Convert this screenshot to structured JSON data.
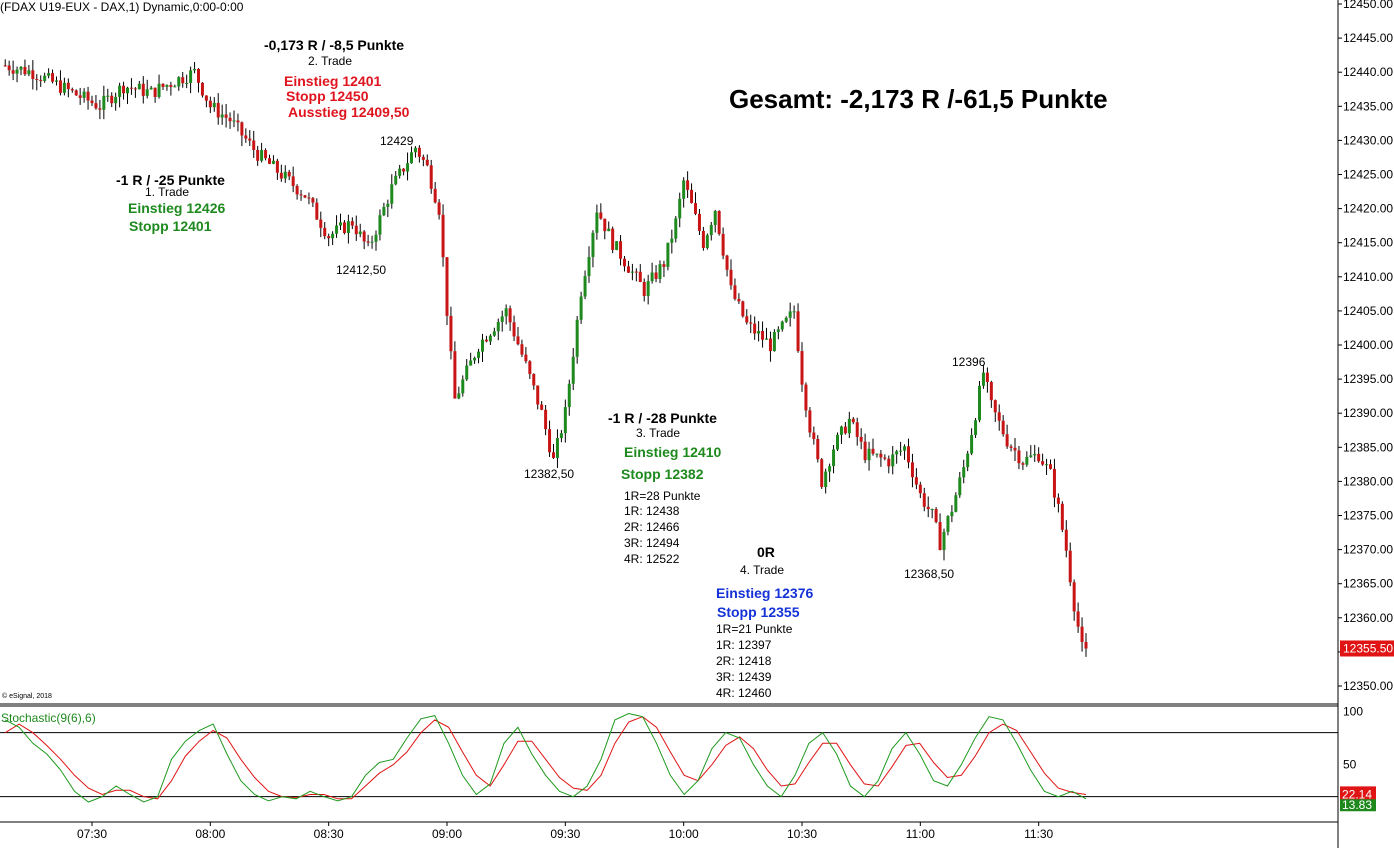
{
  "header": {
    "symbol_text": "(FDAX U19-EUX - DAX,1) Dynamic,0:00-0:00",
    "copyright": "© eSignal, 2018"
  },
  "summary": "Gesamt: -2,173 R /-61,5 Punkte",
  "annotations": {
    "trade1": {
      "result": "-1 R / -25 Punkte",
      "name": "1. Trade",
      "entry": "Einstieg 12426",
      "stop": "Stopp 12401"
    },
    "trade2": {
      "result": "-0,173 R / -8,5 Punkte",
      "name": "2. Trade",
      "entry": "Einstieg 12401",
      "stop": "Stopp 12450",
      "exit": "Ausstieg 12409,50"
    },
    "trade3": {
      "result": "-1 R / -28 Punkte",
      "name": "3. Trade",
      "entry": "Einstieg 12410",
      "stop": "Stopp 12382",
      "r_def": "1R=28 Punkte",
      "r1": "1R: 12438",
      "r2": "2R: 12466",
      "r3": "3R: 12494",
      "r4": "4R: 12522"
    },
    "trade4": {
      "result": "0R",
      "name": "4. Trade",
      "entry": "Einstieg 12376",
      "stop": "Stopp 12355",
      "r_def": "1R=21 Punkte",
      "r1": "1R: 12397",
      "r2": "2R: 12418",
      "r3": "3R: 12439",
      "r4": "4R: 12460"
    },
    "levels": {
      "l12429": "12429",
      "l12412": "12412,50",
      "l12382": "12382,50",
      "l12396": "12396",
      "l12368": "12368,50"
    }
  },
  "colors": {
    "up": "#1e8a1e",
    "down": "#c81414",
    "stoch_k": "#1e9a1e",
    "stoch_d": "#e01414",
    "last_price_bg": "#e01414"
  },
  "chart_data": [
    {
      "type": "candlestick",
      "title": "(FDAX U19-EUX - DAX,1) Dynamic,0:00-0:00",
      "timeframe": "1 minute",
      "y_ticks": [
        12350,
        12355,
        12360,
        12365,
        12370,
        12375,
        12380,
        12385,
        12390,
        12395,
        12400,
        12405,
        12410,
        12415,
        12420,
        12425,
        12430,
        12435,
        12440,
        12445,
        12450
      ],
      "y_tick_labels": [
        "12350.00",
        "12355.00",
        "12360.00",
        "12365.00",
        "12370.00",
        "12375.00",
        "12380.00",
        "12385.00",
        "12390.00",
        "12395.00",
        "12400.00",
        "12405.00",
        "12410.00",
        "12415.00",
        "12420.00",
        "12425.00",
        "12430.00",
        "12435.00",
        "12440.00",
        "12445.00",
        "12450.00"
      ],
      "ylim": [
        12347.5,
        12450.5
      ],
      "x_ticks": [
        "07:30",
        "08:00",
        "08:30",
        "09:00",
        "09:30",
        "10:00",
        "10:30",
        "11:00",
        "11:30"
      ],
      "x_range": [
        "07:08",
        "11:42"
      ],
      "last_price": "12355.50",
      "close_path": [
        {
          "t": "07:08",
          "v": 12441
        },
        {
          "t": "07:15",
          "v": 12440
        },
        {
          "t": "07:25",
          "v": 12437
        },
        {
          "t": "07:32",
          "v": 12435
        },
        {
          "t": "07:38",
          "v": 12438
        },
        {
          "t": "07:45",
          "v": 12437
        },
        {
          "t": "07:52",
          "v": 12439
        },
        {
          "t": "07:56",
          "v": 12440
        },
        {
          "t": "08:00",
          "v": 12435
        },
        {
          "t": "08:05",
          "v": 12433
        },
        {
          "t": "08:12",
          "v": 12428
        },
        {
          "t": "08:18",
          "v": 12425
        },
        {
          "t": "08:24",
          "v": 12422
        },
        {
          "t": "08:30",
          "v": 12416
        },
        {
          "t": "08:36",
          "v": 12418
        },
        {
          "t": "08:40",
          "v": 12414
        },
        {
          "t": "08:46",
          "v": 12423
        },
        {
          "t": "08:52",
          "v": 12429
        },
        {
          "t": "08:55",
          "v": 12426
        },
        {
          "t": "08:58",
          "v": 12420
        },
        {
          "t": "09:00",
          "v": 12405
        },
        {
          "t": "09:01",
          "v": 12398
        },
        {
          "t": "09:02",
          "v": 12392
        },
        {
          "t": "09:08",
          "v": 12400
        },
        {
          "t": "09:15",
          "v": 12405
        },
        {
          "t": "09:20",
          "v": 12397
        },
        {
          "t": "09:24",
          "v": 12390
        },
        {
          "t": "09:27",
          "v": 12383
        },
        {
          "t": "09:30",
          "v": 12390
        },
        {
          "t": "09:34",
          "v": 12408
        },
        {
          "t": "09:38",
          "v": 12420
        },
        {
          "t": "09:42",
          "v": 12415
        },
        {
          "t": "09:50",
          "v": 12408
        },
        {
          "t": "09:55",
          "v": 12412
        },
        {
          "t": "09:58",
          "v": 12418
        },
        {
          "t": "10:00",
          "v": 12424
        },
        {
          "t": "10:05",
          "v": 12415
        },
        {
          "t": "10:08",
          "v": 12420
        },
        {
          "t": "10:12",
          "v": 12408
        },
        {
          "t": "10:16",
          "v": 12403
        },
        {
          "t": "10:22",
          "v": 12400
        },
        {
          "t": "10:28",
          "v": 12405
        },
        {
          "t": "10:30",
          "v": 12395
        },
        {
          "t": "10:32",
          "v": 12388
        },
        {
          "t": "10:35",
          "v": 12380
        },
        {
          "t": "10:38",
          "v": 12385
        },
        {
          "t": "10:42",
          "v": 12389
        },
        {
          "t": "10:46",
          "v": 12384
        },
        {
          "t": "10:52",
          "v": 12383
        },
        {
          "t": "10:56",
          "v": 12385
        },
        {
          "t": "11:00",
          "v": 12378
        },
        {
          "t": "11:03",
          "v": 12375
        },
        {
          "t": "11:05",
          "v": 12371
        },
        {
          "t": "11:08",
          "v": 12376
        },
        {
          "t": "11:11",
          "v": 12382
        },
        {
          "t": "11:14",
          "v": 12390
        },
        {
          "t": "11:16",
          "v": 12396
        },
        {
          "t": "11:18",
          "v": 12391
        },
        {
          "t": "11:22",
          "v": 12386
        },
        {
          "t": "11:26",
          "v": 12383
        },
        {
          "t": "11:30",
          "v": 12384
        },
        {
          "t": "11:33",
          "v": 12381
        },
        {
          "t": "11:35",
          "v": 12376
        },
        {
          "t": "11:37",
          "v": 12370
        },
        {
          "t": "11:39",
          "v": 12362
        },
        {
          "t": "11:41",
          "v": 12355.5
        }
      ]
    },
    {
      "type": "line",
      "title": "Stochastic(9(6),6)",
      "y_ticks": [
        50,
        100
      ],
      "hlines": [
        80,
        20
      ],
      "ylim": [
        0,
        105
      ],
      "last_values": [
        "22.14",
        "13.83"
      ],
      "series": [
        {
          "color": "#1e9a1e",
          "values_k": [
            92,
            85,
            70,
            60,
            45,
            25,
            15,
            20,
            30,
            22,
            15,
            20,
            55,
            72,
            82,
            88,
            60,
            35,
            22,
            16,
            20,
            18,
            25,
            20,
            16,
            20,
            40,
            52,
            55,
            75,
            93,
            96,
            70,
            40,
            22,
            32,
            70,
            85,
            60,
            40,
            25,
            20,
            30,
            55,
            92,
            98,
            95,
            70,
            40,
            22,
            35,
            65,
            80,
            75,
            50,
            30,
            20,
            40,
            70,
            80,
            60,
            30,
            20,
            35,
            65,
            80,
            60,
            35,
            30,
            50,
            75,
            95,
            92,
            70,
            45,
            25,
            20,
            25,
            18
          ]
        },
        {
          "color": "#e01414",
          "values_d": [
            80,
            88,
            80,
            68,
            55,
            40,
            28,
            22,
            26,
            26,
            20,
            18,
            35,
            58,
            72,
            82,
            75,
            55,
            38,
            25,
            20,
            19,
            22,
            22,
            18,
            18,
            30,
            42,
            50,
            62,
            80,
            92,
            85,
            62,
            40,
            30,
            50,
            72,
            72,
            55,
            38,
            28,
            26,
            40,
            70,
            90,
            95,
            85,
            62,
            40,
            35,
            50,
            68,
            76,
            65,
            45,
            30,
            32,
            52,
            70,
            70,
            50,
            32,
            30,
            48,
            68,
            70,
            52,
            38,
            40,
            58,
            80,
            88,
            82,
            62,
            42,
            28,
            24,
            22
          ]
        }
      ]
    }
  ]
}
